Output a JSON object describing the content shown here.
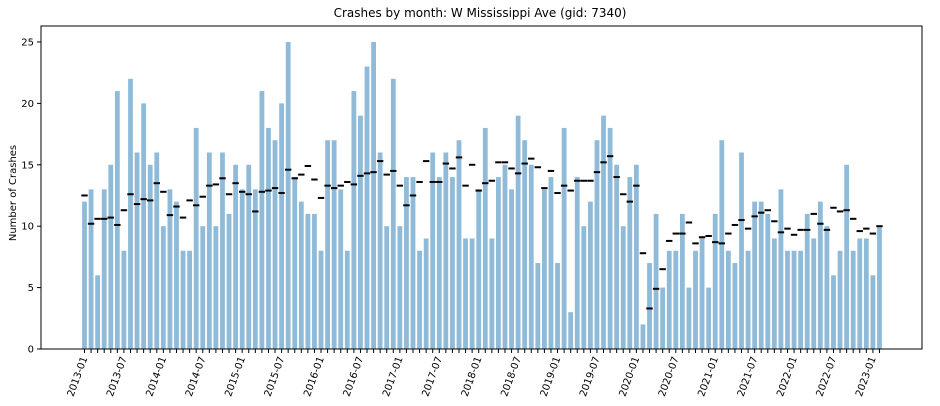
{
  "chart_data": {
    "type": "bar",
    "title": "Crashes by month: W Mississippi Ave (gid: 7340)",
    "xlabel": "",
    "ylabel": "Number of Crashes",
    "ylim": [
      0,
      26.3
    ],
    "yticks": [
      0,
      5,
      10,
      15,
      20,
      25
    ],
    "grid": false,
    "bar_color": "#8fbbd9",
    "marker_color": "#000000",
    "xticks": [
      "2013-01",
      "2013-07",
      "2014-01",
      "2014-07",
      "2015-01",
      "2015-07",
      "2016-01",
      "2016-07",
      "2017-01",
      "2017-07",
      "2018-01",
      "2018-07",
      "2019-01",
      "2019-07",
      "2020-01",
      "2020-07",
      "2021-01",
      "2021-07",
      "2022-01",
      "2022-07",
      "2023-01"
    ],
    "start_month": "2013-01",
    "series": [
      {
        "type": "bar",
        "values": [
          12,
          13,
          6,
          13,
          15,
          21,
          8,
          22,
          16,
          20,
          15,
          16,
          10,
          13,
          12,
          8,
          8,
          18,
          10,
          16,
          10,
          16,
          11,
          15,
          13,
          15,
          13,
          21,
          18,
          17,
          20,
          25,
          14,
          12,
          11,
          11,
          8,
          17,
          17,
          13,
          8,
          21,
          19,
          23,
          25,
          16,
          10,
          22,
          10,
          14,
          14,
          8,
          9,
          16,
          14,
          16,
          14,
          17,
          9,
          9,
          13,
          18,
          9,
          14,
          15,
          13,
          19,
          17,
          15,
          7,
          13,
          14,
          7,
          18,
          3,
          14,
          10,
          12,
          17,
          19,
          18,
          15,
          10,
          14,
          15,
          2,
          7,
          11,
          5,
          8,
          8,
          11,
          5,
          8,
          9,
          5,
          11,
          17,
          8,
          7,
          16,
          8,
          12,
          12,
          11,
          9,
          13,
          8,
          8,
          8,
          11,
          9,
          12,
          10,
          6,
          8,
          15,
          8,
          9,
          9,
          6,
          10
        ]
      },
      {
        "type": "marker",
        "values": [
          12.5,
          10.2,
          10.6,
          10.6,
          10.7,
          10.1,
          11.3,
          12.6,
          11.8,
          12.2,
          12.1,
          13.5,
          12.8,
          10.9,
          11.6,
          10.7,
          12.1,
          11.7,
          12.4,
          13.3,
          13.4,
          13.9,
          12.6,
          13.5,
          12.8,
          12.6,
          11.2,
          12.8,
          12.9,
          13.1,
          12.7,
          14.6,
          13.9,
          14.2,
          14.9,
          13.8,
          12.3,
          13.3,
          13.1,
          13.3,
          13.6,
          13.4,
          14.1,
          14.3,
          14.4,
          15.3,
          14.2,
          14.5,
          13.3,
          11.7,
          12.5,
          13.6,
          15.3,
          13.6,
          13.6,
          15.1,
          14.7,
          15.6,
          13.3,
          15.0,
          12.9,
          13.5,
          13.7,
          15.2,
          15.2,
          14.7,
          14.3,
          15.1,
          15.5,
          14.8,
          13.1,
          14.5,
          12.7,
          13.3,
          12.9,
          13.7,
          13.7,
          13.7,
          14.4,
          15.2,
          15.7,
          14.0,
          12.6,
          12.0,
          13.3,
          7.8,
          3.3,
          4.9,
          6.5,
          8.8,
          9.4,
          9.4,
          10.3,
          8.6,
          9.1,
          9.2,
          8.7,
          8.6,
          9.4,
          10.1,
          10.5,
          9.8,
          10.8,
          11.1,
          11.3,
          10.4,
          9.5,
          9.8,
          9.3,
          9.7,
          9.7,
          11.0,
          10.2,
          9.7,
          11.5,
          11.2,
          11.3,
          10.6,
          9.6,
          9.8,
          9.4,
          10.0
        ]
      }
    ]
  }
}
